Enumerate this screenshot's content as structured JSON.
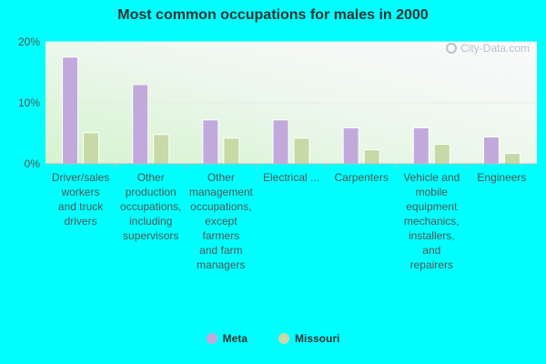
{
  "colors": {
    "background": "#00FFFF",
    "meta": "#c2a9dc",
    "missouri": "#c6d9a6"
  },
  "watermark": "City-Data.com",
  "chart_data": {
    "type": "bar",
    "title": "Most common occupations for males in 2000",
    "xlabel": "",
    "ylabel": "",
    "ylim": [
      0,
      20
    ],
    "yticks": [
      "0%",
      "10%",
      "20%"
    ],
    "grid": true,
    "legend_position": "bottom",
    "categories": [
      "Driver/sales workers and truck drivers",
      "Other production occupations, including supervisors",
      "Other management occupations, except farmers and farm managers",
      "Electrical ...",
      "Carpenters",
      "Vehicle and mobile equipment mechanics, installers, and repairers",
      "Engineers"
    ],
    "category_lines": [
      [
        "Driver/sales",
        "workers",
        "and truck",
        "drivers"
      ],
      [
        "Other",
        "production",
        "occupations,",
        "including",
        "supervisors"
      ],
      [
        "Other",
        "management",
        "occupations,",
        "except",
        "farmers",
        "and farm",
        "managers"
      ],
      [
        "Electrical ..."
      ],
      [
        "Carpenters"
      ],
      [
        "Vehicle and",
        "mobile",
        "equipment",
        "mechanics,",
        "installers,",
        "and",
        "repairers"
      ],
      [
        "Engineers"
      ]
    ],
    "series": [
      {
        "name": "Meta",
        "values": [
          17.5,
          13,
          7.2,
          7.2,
          5.9,
          5.9,
          4.4
        ]
      },
      {
        "name": "Missouri",
        "values": [
          5.1,
          4.8,
          4.2,
          4.2,
          2.3,
          3.2,
          1.7
        ]
      }
    ]
  }
}
